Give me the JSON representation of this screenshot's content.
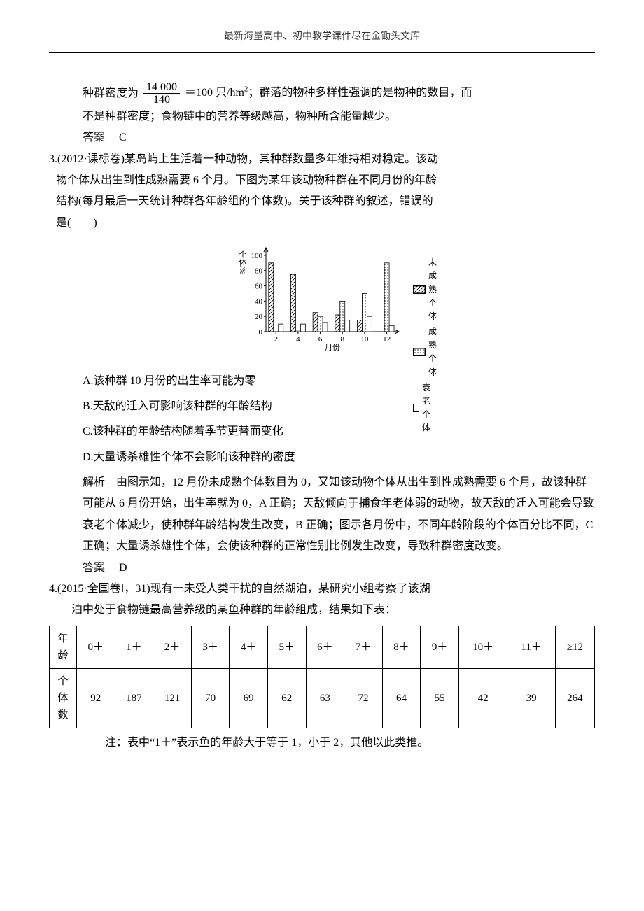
{
  "header": "最新海量高中、初中教学课件尽在金锄头文库",
  "q2_tail": {
    "line1_pre": "种群密度为",
    "frac_top": "14 000",
    "frac_bot": "140",
    "line1_post": "＝100 只/hm²；群落的物种多样性强调的是物种的数目，而",
    "line2": "不是种群密度；食物链中的营养等级越高，物种所含能量越少。",
    "answer_label": "答案",
    "answer_val": "C"
  },
  "q3": {
    "num": "3.",
    "src": "(2012·课标卷)",
    "stem1": "某岛屿上生活着一种动物，其种群数量多年维持相对稳定。该动",
    "stem2": "物个体从出生到性成熟需要 6 个月。下图为某年该动物种群在不同月份的年龄",
    "stem3": "结构(每月最后一天统计种群各年龄组的个体数)。关于该种群的叙述，错误的",
    "stem4": "是(　　)",
    "chart": {
      "type": "bar",
      "ylabel": "个体/%",
      "xlabel": "月份",
      "ylim": [
        0,
        110
      ],
      "yticks": [
        0,
        20,
        40,
        60,
        80,
        100
      ],
      "xticks": [
        2,
        4,
        6,
        8,
        10,
        12
      ],
      "series_labels": [
        "未成熟个体",
        "成熟个体",
        "衰老个体"
      ],
      "fill_patterns": [
        "hatch",
        "dots",
        "white"
      ],
      "bar_border": "#000000",
      "axis_color": "#000000",
      "bg": "#ffffff",
      "label_fontsize": 11,
      "tick_fontsize": 11,
      "data": {
        "2": [
          90,
          0,
          10
        ],
        "4": [
          75,
          2,
          10
        ],
        "6": [
          25,
          20,
          12
        ],
        "8": [
          22,
          40,
          15
        ],
        "10": [
          15,
          50,
          20
        ],
        "12": [
          0,
          90,
          8
        ]
      }
    },
    "options": {
      "A": "A.该种群 10 月份的出生率可能为零",
      "B": "B.天敌的迁入可影响该种群的年龄结构",
      "C": "C.该种群的年龄结构随着季节更替而变化",
      "D": "D.大量诱杀雄性个体不会影响该种群的密度"
    },
    "expl_label": "解析",
    "expl": "由图示知，12 月份未成熟个体数目为 0，又知该动物个体从出生到性成熟需要 6 个月，故该种群可能从 6 月份开始，出生率就为 0，A 正确；天敌倾向于捕食年老体弱的动物，故天敌的迁入可能会导致衰老个体减少，使种群年龄结构发生改变，B 正确；图示各月份中，不同年龄阶段的个体百分比不同，C 正确；大量诱杀雄性个体，会使该种群的正常性别比例发生改变，导致种群密度改变。",
    "answer_label": "答案",
    "answer_val": "D"
  },
  "q4": {
    "num": "4.",
    "src": "(2015·全国卷Ⅰ，31)",
    "stem1": "现有一未受人类干扰的自然湖泊，某研究小组考察了该湖",
    "stem2": "泊中处于食物链最高营养级的某鱼种群的年龄组成，结果如下表：",
    "table": {
      "row1_label": "年龄",
      "row2_label": "个体数",
      "columns": [
        "0＋",
        "1＋",
        "2＋",
        "3＋",
        "4＋",
        "5＋",
        "6＋",
        "7＋",
        "8＋",
        "9＋",
        "10＋",
        "11＋",
        "≥12"
      ],
      "values": [
        "92",
        "187",
        "121",
        "70",
        "69",
        "62",
        "63",
        "72",
        "64",
        "55",
        "42",
        "39",
        "264"
      ]
    },
    "note": "注：表中“1＋”表示鱼的年龄大于等于 1，小于 2，其他以此类推。"
  }
}
